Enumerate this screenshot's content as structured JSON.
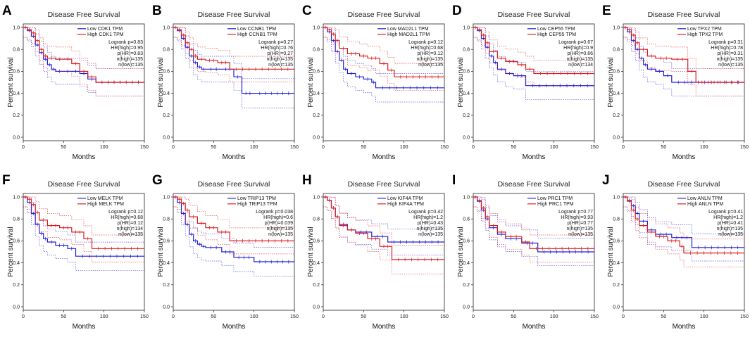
{
  "colors": {
    "low": "#1f1fdd",
    "high": "#e01b1b",
    "axis": "#222222"
  },
  "chart_data": [
    {
      "panel": "A",
      "type": "line",
      "title": "Disease Free Survival",
      "xlabel": "Months",
      "ylabel": "Percent survival",
      "xlim": [
        0,
        150
      ],
      "ylim": [
        0,
        1
      ],
      "xticks": [
        "0",
        "50",
        "100",
        "150"
      ],
      "yticks": [
        "0.0",
        "0.2",
        "0.4",
        "0.6",
        "0.8",
        "1.0"
      ],
      "legend": [
        "Low CDK1 TPM",
        "High CDK1 TPM"
      ],
      "stats": [
        "Logrank p=0.83",
        "HR(high)=0.95",
        "p(HR)=0.83",
        "n(high)=135",
        "n(low)=135"
      ],
      "series": [
        {
          "name": "Low CDK1 TPM",
          "x": [
            0,
            5,
            10,
            15,
            20,
            25,
            30,
            35,
            40,
            50,
            60,
            70,
            80,
            90,
            150
          ],
          "y": [
            1.0,
            0.97,
            0.92,
            0.84,
            0.77,
            0.71,
            0.66,
            0.62,
            0.6,
            0.6,
            0.6,
            0.58,
            0.53,
            0.5,
            0.5
          ]
        },
        {
          "name": "High CDK1 TPM",
          "x": [
            0,
            5,
            10,
            15,
            20,
            25,
            30,
            40,
            50,
            60,
            70,
            80,
            90,
            150
          ],
          "y": [
            1.0,
            0.98,
            0.95,
            0.88,
            0.8,
            0.74,
            0.72,
            0.71,
            0.71,
            0.67,
            0.6,
            0.55,
            0.5,
            0.5
          ]
        }
      ]
    },
    {
      "panel": "B",
      "type": "line",
      "title": "Disease Free Survival",
      "xlabel": "Months",
      "ylabel": "Percent survival",
      "xlim": [
        0,
        150
      ],
      "ylim": [
        0,
        1
      ],
      "xticks": [
        "0",
        "50",
        "100",
        "150"
      ],
      "yticks": [
        "0.0",
        "0.2",
        "0.4",
        "0.6",
        "0.8",
        "1.0"
      ],
      "legend": [
        "Low CCNB1 TPM",
        "High CCNB1 TPM"
      ],
      "stats": [
        "Logrank p=0.27",
        "HR(high)=0.76",
        "p(HR)=0.27",
        "n(high)=135",
        "n(low)=135"
      ],
      "series": [
        {
          "name": "Low CCNB1 TPM",
          "x": [
            0,
            5,
            10,
            15,
            20,
            25,
            30,
            35,
            40,
            60,
            75,
            85,
            100,
            150
          ],
          "y": [
            1.0,
            0.97,
            0.9,
            0.82,
            0.74,
            0.68,
            0.64,
            0.62,
            0.62,
            0.62,
            0.55,
            0.4,
            0.4,
            0.4
          ]
        },
        {
          "name": "High CCNB1 TPM",
          "x": [
            0,
            5,
            10,
            15,
            20,
            25,
            30,
            40,
            55,
            70,
            150
          ],
          "y": [
            1.0,
            0.98,
            0.93,
            0.86,
            0.8,
            0.74,
            0.71,
            0.7,
            0.68,
            0.62,
            0.62
          ]
        }
      ]
    },
    {
      "panel": "C",
      "type": "line",
      "title": "Disease Free Survival",
      "xlabel": "Months",
      "ylabel": "Percent survival",
      "xlim": [
        0,
        150
      ],
      "ylim": [
        0,
        1
      ],
      "xticks": [
        "0",
        "50",
        "100",
        "150"
      ],
      "yticks": [
        "0.0",
        "0.2",
        "0.4",
        "0.6",
        "0.8",
        "1.0"
      ],
      "legend": [
        "Low MAD2L1 TPM",
        "High MAD2L1 TPM"
      ],
      "stats": [
        "Logrank p=0.12",
        "HR(high)=0.68",
        "p(HR)=0.12",
        "n(high)=135",
        "n(low)=135"
      ],
      "series": [
        {
          "name": "Low MAD2L1 TPM",
          "x": [
            0,
            5,
            10,
            15,
            20,
            25,
            30,
            40,
            50,
            60,
            65,
            150
          ],
          "y": [
            1.0,
            0.96,
            0.88,
            0.78,
            0.7,
            0.62,
            0.58,
            0.55,
            0.53,
            0.5,
            0.45,
            0.45
          ]
        },
        {
          "name": "High MAD2L1 TPM",
          "x": [
            0,
            5,
            10,
            15,
            20,
            30,
            45,
            55,
            70,
            80,
            88,
            150
          ],
          "y": [
            1.0,
            0.98,
            0.94,
            0.88,
            0.81,
            0.76,
            0.74,
            0.72,
            0.67,
            0.61,
            0.55,
            0.55
          ]
        }
      ]
    },
    {
      "panel": "D",
      "type": "line",
      "title": "Disease Free Survival",
      "xlabel": "Months",
      "ylabel": "Percent survival",
      "xlim": [
        0,
        150
      ],
      "ylim": [
        0,
        1
      ],
      "xticks": [
        "0",
        "50",
        "100",
        "150"
      ],
      "yticks": [
        "0.0",
        "0.2",
        "0.4",
        "0.6",
        "0.8",
        "1.0"
      ],
      "legend": [
        "Low CEP55 TPM",
        "High CEP55 TPM"
      ],
      "stats": [
        "Logrank p=0.67",
        "HR(high)=0.9",
        "p(HR)=0.66",
        "n(high)=135",
        "n(low)=134"
      ],
      "series": [
        {
          "name": "Low CEP55 TPM",
          "x": [
            0,
            5,
            10,
            15,
            20,
            25,
            30,
            40,
            50,
            65,
            150
          ],
          "y": [
            1.0,
            0.97,
            0.9,
            0.82,
            0.74,
            0.68,
            0.62,
            0.58,
            0.56,
            0.47,
            0.47
          ]
        },
        {
          "name": "High CEP55 TPM",
          "x": [
            0,
            5,
            10,
            15,
            20,
            30,
            40,
            55,
            65,
            75,
            150
          ],
          "y": [
            1.0,
            0.98,
            0.93,
            0.86,
            0.78,
            0.72,
            0.69,
            0.66,
            0.62,
            0.58,
            0.58
          ]
        }
      ]
    },
    {
      "panel": "E",
      "type": "line",
      "title": "Disease Free Survival",
      "xlabel": "Months",
      "ylabel": "Percent survival",
      "xlim": [
        0,
        150
      ],
      "ylim": [
        0,
        1
      ],
      "xticks": [
        "0",
        "50",
        "100",
        "150"
      ],
      "yticks": [
        "0.0",
        "0.2",
        "0.4",
        "0.6",
        "0.8",
        "1.0"
      ],
      "legend": [
        "Low TPX2 TPM",
        "High TPX2 TPM"
      ],
      "stats": [
        "Logrank p=0.31",
        "HR(high)=0.78",
        "p(HR)=0.31",
        "n(high)=135",
        "n(low)=135"
      ],
      "series": [
        {
          "name": "Low TPX2 TPM",
          "x": [
            0,
            5,
            10,
            15,
            20,
            25,
            30,
            40,
            50,
            60,
            150
          ],
          "y": [
            1.0,
            0.96,
            0.88,
            0.8,
            0.72,
            0.66,
            0.62,
            0.6,
            0.56,
            0.5,
            0.5
          ]
        },
        {
          "name": "High TPX2 TPM",
          "x": [
            0,
            5,
            10,
            15,
            20,
            30,
            40,
            60,
            80,
            90,
            150
          ],
          "y": [
            1.0,
            0.98,
            0.93,
            0.86,
            0.8,
            0.74,
            0.72,
            0.71,
            0.6,
            0.5,
            0.5
          ]
        }
      ]
    },
    {
      "panel": "F",
      "type": "line",
      "title": "Disease Free Survival",
      "xlabel": "Months",
      "ylabel": "Percent survival",
      "xlim": [
        0,
        150
      ],
      "ylim": [
        0,
        1
      ],
      "xticks": [
        "0",
        "50",
        "100",
        "150"
      ],
      "yticks": [
        "0.0",
        "0.2",
        "0.4",
        "0.6",
        "0.8",
        "1.0"
      ],
      "legend": [
        "Low MELK TPM",
        "High MELK TPM"
      ],
      "stats": [
        "Logrank p=0.12",
        "HR(high)=0.68",
        "p(HR)=0.12",
        "n(high)=134",
        "n(low)=135"
      ],
      "series": [
        {
          "name": "Low MELK TPM",
          "x": [
            0,
            5,
            10,
            15,
            20,
            25,
            30,
            40,
            55,
            65,
            150
          ],
          "y": [
            1.0,
            0.95,
            0.85,
            0.75,
            0.67,
            0.62,
            0.59,
            0.56,
            0.53,
            0.46,
            0.46
          ]
        },
        {
          "name": "High MELK TPM",
          "x": [
            0,
            5,
            10,
            15,
            20,
            30,
            45,
            60,
            75,
            85,
            150
          ],
          "y": [
            1.0,
            0.98,
            0.93,
            0.86,
            0.79,
            0.74,
            0.72,
            0.68,
            0.62,
            0.53,
            0.53
          ]
        }
      ]
    },
    {
      "panel": "G",
      "type": "line",
      "title": "Disease Free Survival",
      "xlabel": "Months",
      "ylabel": "Percent survival",
      "xlim": [
        0,
        150
      ],
      "ylim": [
        0,
        1
      ],
      "xticks": [
        "0",
        "50",
        "100",
        "150"
      ],
      "yticks": [
        "0.0",
        "0.2",
        "0.4",
        "0.6",
        "0.8",
        "1.0"
      ],
      "legend": [
        "Low TRIP13 TPM",
        "High TRIP13 TPM"
      ],
      "stats": [
        "Logrank p=0.038",
        "HR(high)=0.6",
        "p(HR)=0.039",
        "n(high)=135",
        "n(low)=135"
      ],
      "series": [
        {
          "name": "Low TRIP13 TPM",
          "x": [
            0,
            5,
            10,
            15,
            20,
            25,
            30,
            35,
            40,
            60,
            75,
            100,
            150
          ],
          "y": [
            1.0,
            0.95,
            0.85,
            0.75,
            0.66,
            0.6,
            0.57,
            0.55,
            0.54,
            0.5,
            0.45,
            0.41,
            0.41
          ]
        },
        {
          "name": "High TRIP13 TPM",
          "x": [
            0,
            5,
            10,
            15,
            20,
            30,
            40,
            55,
            70,
            150
          ],
          "y": [
            1.0,
            0.98,
            0.94,
            0.88,
            0.82,
            0.76,
            0.72,
            0.68,
            0.6,
            0.6
          ]
        }
      ]
    },
    {
      "panel": "H",
      "type": "line",
      "title": "Disease Free Survival",
      "xlabel": "Months",
      "ylabel": "Percent survival",
      "xlim": [
        0,
        150
      ],
      "ylim": [
        0,
        1
      ],
      "xticks": [
        "0",
        "50",
        "100",
        "150"
      ],
      "yticks": [
        "0.0",
        "0.2",
        "0.4",
        "0.6",
        "0.8",
        "1.0"
      ],
      "legend": [
        "Low KIF4A TPM",
        "High KIF4A TPM"
      ],
      "stats": [
        "Logrank p=0.42",
        "HR(high)=1.2",
        "p(HR)=0.43",
        "n(high)=135",
        "n(low)=135"
      ],
      "series": [
        {
          "name": "Low KIF4A TPM",
          "x": [
            0,
            5,
            10,
            15,
            20,
            30,
            40,
            60,
            80,
            150
          ],
          "y": [
            1.0,
            0.97,
            0.9,
            0.82,
            0.75,
            0.7,
            0.68,
            0.64,
            0.59,
            0.59
          ]
        },
        {
          "name": "High KIF4A TPM",
          "x": [
            0,
            5,
            10,
            15,
            20,
            30,
            40,
            55,
            70,
            85,
            150
          ],
          "y": [
            1.0,
            0.97,
            0.9,
            0.82,
            0.74,
            0.7,
            0.67,
            0.62,
            0.55,
            0.43,
            0.43
          ]
        }
      ]
    },
    {
      "panel": "I",
      "type": "line",
      "title": "Disease Free Survival",
      "xlabel": "Months",
      "ylabel": "Percent survival",
      "xlim": [
        0,
        150
      ],
      "ylim": [
        0,
        1
      ],
      "xticks": [
        "0",
        "50",
        "100",
        "150"
      ],
      "yticks": [
        "0.0",
        "0.2",
        "0.4",
        "0.6",
        "0.8",
        "1.0"
      ],
      "legend": [
        "Low PRC1 TPM",
        "High PRC1 TPM"
      ],
      "stats": [
        "Logrank p=0.77",
        "HR(high)=0.93",
        "p(HR)=0.77",
        "n(high)=135",
        "n(low)=135"
      ],
      "series": [
        {
          "name": "Low PRC1 TPM",
          "x": [
            0,
            5,
            10,
            15,
            20,
            30,
            40,
            60,
            80,
            150
          ],
          "y": [
            1.0,
            0.96,
            0.88,
            0.8,
            0.72,
            0.66,
            0.62,
            0.58,
            0.5,
            0.5
          ]
        },
        {
          "name": "High PRC1 TPM",
          "x": [
            0,
            5,
            10,
            15,
            20,
            30,
            40,
            60,
            70,
            150
          ],
          "y": [
            1.0,
            0.97,
            0.9,
            0.82,
            0.74,
            0.68,
            0.64,
            0.59,
            0.53,
            0.53
          ]
        }
      ]
    },
    {
      "panel": "J",
      "type": "line",
      "title": "Disease Free Survival",
      "xlabel": "Months",
      "ylabel": "Percent survival",
      "xlim": [
        0,
        150
      ],
      "ylim": [
        0,
        1
      ],
      "xticks": [
        "0",
        "50",
        "100",
        "150"
      ],
      "yticks": [
        "0.0",
        "0.2",
        "0.4",
        "0.6",
        "0.8",
        "1.0"
      ],
      "legend": [
        "Low ANLN TPM",
        "High ANLN TPM"
      ],
      "stats": [
        "Logrank p=0.41",
        "HR(high)=1.2",
        "p(HR)=0.41",
        "n(high)=135",
        "n(low)=135"
      ],
      "series": [
        {
          "name": "Low ANLN TPM",
          "x": [
            0,
            5,
            10,
            15,
            20,
            30,
            40,
            60,
            85,
            150
          ],
          "y": [
            1.0,
            0.97,
            0.92,
            0.85,
            0.78,
            0.7,
            0.66,
            0.63,
            0.54,
            0.54
          ]
        },
        {
          "name": "High ANLN TPM",
          "x": [
            0,
            5,
            10,
            15,
            20,
            30,
            40,
            55,
            70,
            75,
            150
          ],
          "y": [
            1.0,
            0.96,
            0.88,
            0.8,
            0.74,
            0.68,
            0.64,
            0.6,
            0.55,
            0.49,
            0.49
          ]
        }
      ]
    }
  ]
}
